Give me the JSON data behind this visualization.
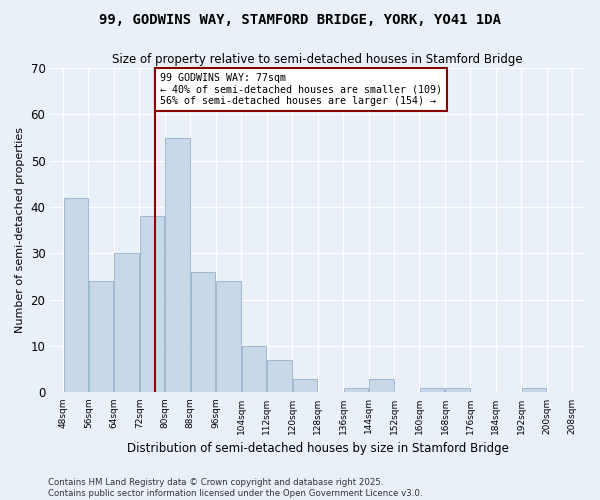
{
  "title": "99, GODWINS WAY, STAMFORD BRIDGE, YORK, YO41 1DA",
  "subtitle": "Size of property relative to semi-detached houses in Stamford Bridge",
  "xlabel": "Distribution of semi-detached houses by size in Stamford Bridge",
  "ylabel": "Number of semi-detached properties",
  "bar_edges": [
    48,
    56,
    64,
    72,
    80,
    88,
    96,
    104,
    112,
    120,
    128,
    136,
    144,
    152,
    160,
    168,
    176,
    184,
    192,
    200,
    208
  ],
  "bar_heights": [
    42,
    24,
    30,
    38,
    55,
    26,
    24,
    10,
    7,
    3,
    0,
    1,
    3,
    0,
    1,
    1,
    0,
    0,
    1,
    0
  ],
  "bar_color": "#c8d8e8",
  "bar_edgecolor": "#a0b8d0",
  "property_size": 77,
  "vline_color": "#8b0000",
  "annotation_box_color": "#8b0000",
  "annotation_text": "99 GODWINS WAY: 77sqm\n← 40% of semi-detached houses are smaller (109)\n56% of semi-detached houses are larger (154) →",
  "ylim": [
    0,
    70
  ],
  "yticks": [
    0,
    10,
    20,
    30,
    40,
    50,
    60,
    70
  ],
  "background_color": "#eaf0f8",
  "plot_background": "#eaf0f8",
  "footer_line1": "Contains HM Land Registry data © Crown copyright and database right 2025.",
  "footer_line2": "Contains public sector information licensed under the Open Government Licence v3.0."
}
